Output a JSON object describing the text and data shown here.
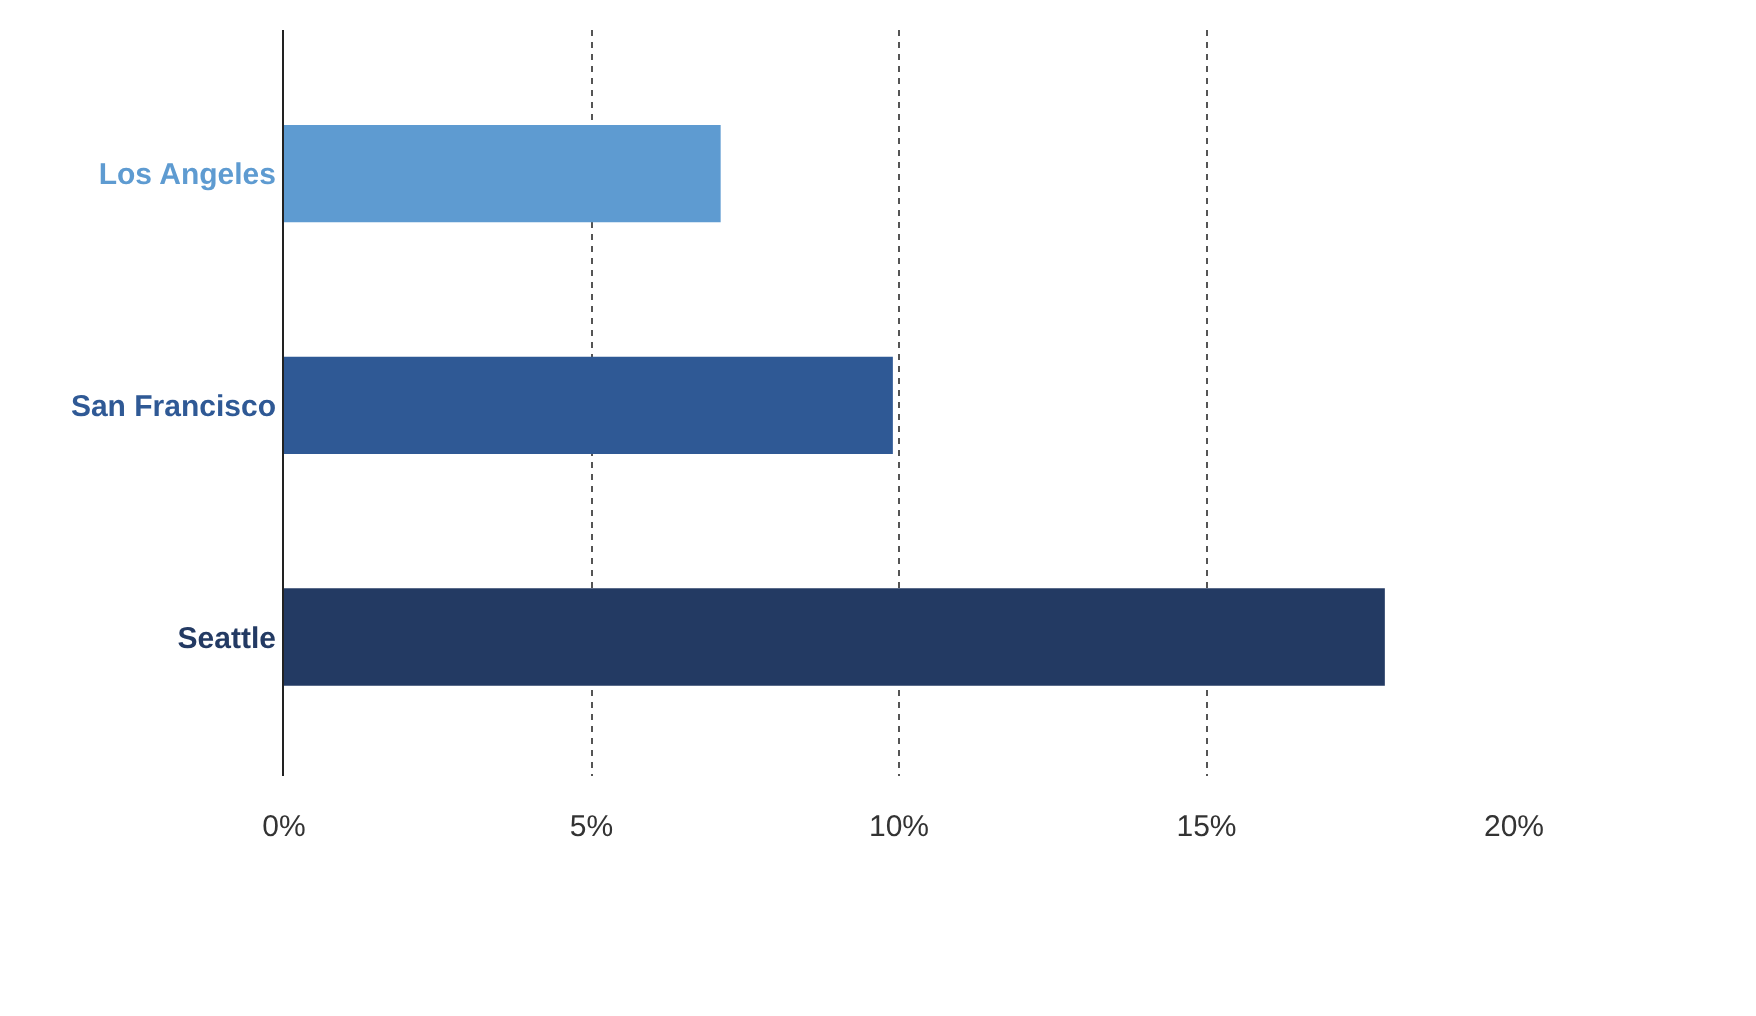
{
  "chart_data": {
    "type": "bar",
    "orientation": "horizontal",
    "categories": [
      "Los Angeles",
      "San Francisco",
      "Seattle"
    ],
    "values": [
      7.1,
      9.9,
      17.9
    ],
    "colors": [
      "#5e9bd1",
      "#2f5995",
      "#233a63"
    ],
    "xlim": [
      0,
      20
    ],
    "xticks": [
      {
        "value": 0,
        "label": "0%"
      },
      {
        "value": 5,
        "label": "5%"
      },
      {
        "value": 10,
        "label": "10%"
      },
      {
        "value": 15,
        "label": "15%"
      },
      {
        "value": 20,
        "label": "20%"
      }
    ],
    "grid": "x"
  }
}
